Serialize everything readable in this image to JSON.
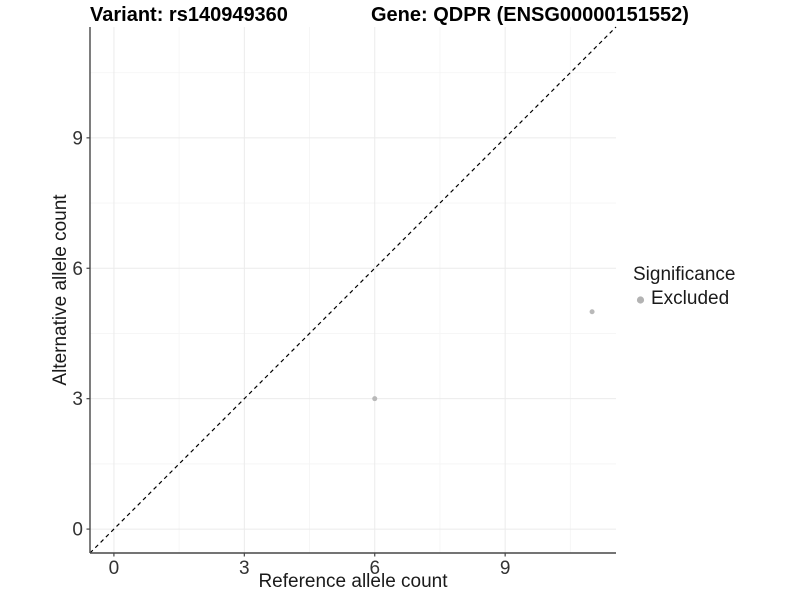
{
  "titles": {
    "variant": "Variant: rs140949360",
    "gene": "Gene: QDPR (ENSG00000151552)"
  },
  "chart_data": {
    "type": "scatter",
    "title": "Variant: rs140949360   Gene: QDPR (ENSG00000151552)",
    "xlabel": "Reference allele count",
    "ylabel": "Alternative allele count",
    "xlim": [
      -0.55,
      11.55
    ],
    "ylim": [
      -0.55,
      11.55
    ],
    "x_ticks": [
      0,
      3,
      6,
      9
    ],
    "y_ticks": [
      0,
      3,
      6,
      9
    ],
    "x_minor": [
      1.5,
      4.5,
      7.5,
      10.5
    ],
    "y_minor": [
      1.5,
      4.5,
      7.5,
      10.5
    ],
    "grid": true,
    "points": [
      {
        "x": 6,
        "y": 3,
        "series": "Excluded"
      },
      {
        "x": 11,
        "y": 5,
        "series": "Excluded"
      }
    ],
    "abline": {
      "slope": 1,
      "intercept": 0,
      "style": "dashed",
      "color": "#000000"
    },
    "legend": {
      "title": "Significance",
      "position": "right",
      "entries": [
        {
          "label": "Excluded",
          "color": "#b3b3b3"
        }
      ]
    },
    "point_color": "#b9b9b9"
  },
  "colors": {
    "background": "#ffffff",
    "axis": "#464646",
    "grid_major": "#ebebeb",
    "grid_minor": "#f5f5f5",
    "dashed_line": "#000000",
    "excluded_gray": "#b3b3b3"
  }
}
